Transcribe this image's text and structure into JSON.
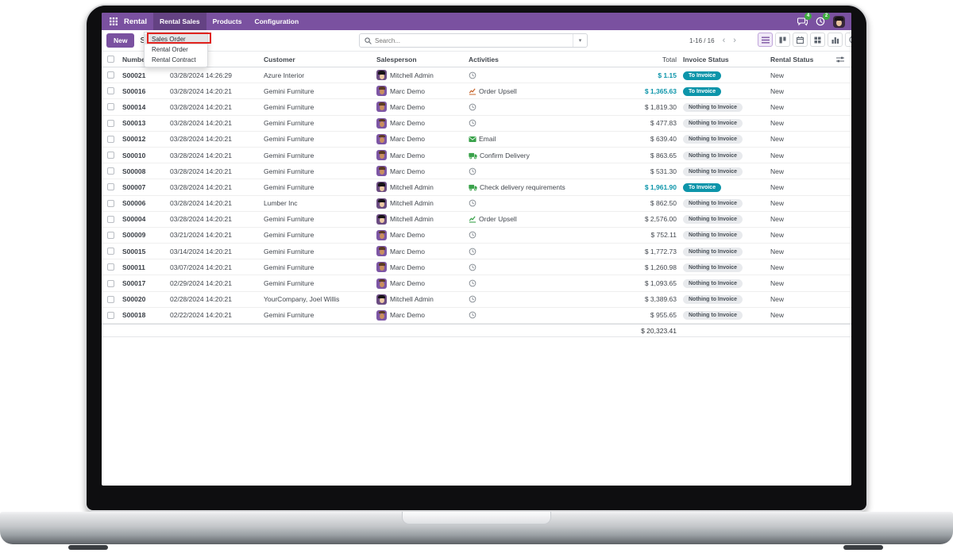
{
  "navbar": {
    "app_name": "Rental",
    "menus": [
      "Rental Sales",
      "Products",
      "Configuration"
    ],
    "active_menu": "Rental Sales",
    "messages_badge": "4",
    "activities_badge": "2"
  },
  "control_panel": {
    "new_label": "New",
    "breadcrumb": "Sales",
    "search_placeholder": "Search...",
    "pager_text": "1-16 / 16",
    "views": [
      "list",
      "kanban",
      "calendar",
      "pivot",
      "graph",
      "activity"
    ],
    "active_view": "list"
  },
  "dropdown_menu": {
    "items": [
      "Sales Order",
      "Rental Order",
      "Rental Contract"
    ],
    "highlighted_item": "Sales Order",
    "annotation_color": "#e0231e"
  },
  "colors": {
    "brand_purple": "#7a51a0",
    "info_teal": "#0d95aa",
    "muted_badge": "#e8eaed",
    "activity_green": "#39a24a",
    "activity_orange": "#c7642a",
    "badge_green": "#3fae41"
  },
  "table": {
    "headers": [
      "Number",
      "Customer",
      "Salesperson",
      "Activities",
      "Total",
      "Invoice Status",
      "Rental Status"
    ],
    "footer_total": "$ 20,323.41",
    "rows": [
      {
        "number": "S00021",
        "date": "03/28/2024 14:26:29",
        "customer": "Azure Interior",
        "salesperson": "Mitchell Admin",
        "avatar": "admin",
        "activity": {
          "icon": "clock",
          "label": "",
          "color": "#8a9097"
        },
        "total": "$ 1.15",
        "total_teal": true,
        "invoice_status": "To Invoice",
        "invoice_badge": "info",
        "rental_status": "New"
      },
      {
        "number": "S00016",
        "date": "03/28/2024 14:20:21",
        "customer": "Gemini Furniture",
        "salesperson": "Marc Demo",
        "avatar": "demo",
        "activity": {
          "icon": "chart",
          "label": "Order Upsell",
          "color": "#c7642a"
        },
        "total": "$ 1,365.63",
        "total_teal": true,
        "invoice_status": "To Invoice",
        "invoice_badge": "info",
        "rental_status": "New"
      },
      {
        "number": "S00014",
        "date": "03/28/2024 14:20:21",
        "customer": "Gemini Furniture",
        "salesperson": "Marc Demo",
        "avatar": "demo",
        "activity": {
          "icon": "clock",
          "label": "",
          "color": "#8a9097"
        },
        "total": "$ 1,819.30",
        "total_teal": false,
        "invoice_status": "Nothing to Invoice",
        "invoice_badge": "muted",
        "rental_status": "New"
      },
      {
        "number": "S00013",
        "date": "03/28/2024 14:20:21",
        "customer": "Gemini Furniture",
        "salesperson": "Marc Demo",
        "avatar": "demo",
        "activity": {
          "icon": "clock",
          "label": "",
          "color": "#8a9097"
        },
        "total": "$ 477.83",
        "total_teal": false,
        "invoice_status": "Nothing to Invoice",
        "invoice_badge": "muted",
        "rental_status": "New"
      },
      {
        "number": "S00012",
        "date": "03/28/2024 14:20:21",
        "customer": "Gemini Furniture",
        "salesperson": "Marc Demo",
        "avatar": "demo",
        "activity": {
          "icon": "email",
          "label": "Email",
          "color": "#39a24a"
        },
        "total": "$ 639.40",
        "total_teal": false,
        "invoice_status": "Nothing to Invoice",
        "invoice_badge": "muted",
        "rental_status": "New"
      },
      {
        "number": "S00010",
        "date": "03/28/2024 14:20:21",
        "customer": "Gemini Furniture",
        "salesperson": "Marc Demo",
        "avatar": "demo",
        "activity": {
          "icon": "delivery",
          "label": "Confirm Delivery",
          "color": "#39a24a"
        },
        "total": "$ 863.65",
        "total_teal": false,
        "invoice_status": "Nothing to Invoice",
        "invoice_badge": "muted",
        "rental_status": "New"
      },
      {
        "number": "S00008",
        "date": "03/28/2024 14:20:21",
        "customer": "Gemini Furniture",
        "salesperson": "Marc Demo",
        "avatar": "demo",
        "activity": {
          "icon": "clock",
          "label": "",
          "color": "#8a9097"
        },
        "total": "$ 531.30",
        "total_teal": false,
        "invoice_status": "Nothing to Invoice",
        "invoice_badge": "muted",
        "rental_status": "New"
      },
      {
        "number": "S00007",
        "date": "03/28/2024 14:20:21",
        "customer": "Gemini Furniture",
        "salesperson": "Mitchell Admin",
        "avatar": "admin",
        "activity": {
          "icon": "delivery",
          "label": "Check delivery requirements",
          "color": "#39a24a"
        },
        "total": "$ 1,961.90",
        "total_teal": true,
        "invoice_status": "To Invoice",
        "invoice_badge": "info",
        "rental_status": "New"
      },
      {
        "number": "S00006",
        "date": "03/28/2024 14:20:21",
        "customer": "Lumber Inc",
        "salesperson": "Mitchell Admin",
        "avatar": "admin",
        "activity": {
          "icon": "clock",
          "label": "",
          "color": "#8a9097"
        },
        "total": "$ 862.50",
        "total_teal": false,
        "invoice_status": "Nothing to Invoice",
        "invoice_badge": "muted",
        "rental_status": "New"
      },
      {
        "number": "S00004",
        "date": "03/28/2024 14:20:21",
        "customer": "Gemini Furniture",
        "salesperson": "Mitchell Admin",
        "avatar": "admin",
        "activity": {
          "icon": "chart",
          "label": "Order Upsell",
          "color": "#39a24a"
        },
        "total": "$ 2,576.00",
        "total_teal": false,
        "invoice_status": "Nothing to Invoice",
        "invoice_badge": "muted",
        "rental_status": "New"
      },
      {
        "number": "S00009",
        "date": "03/21/2024 14:20:21",
        "customer": "Gemini Furniture",
        "salesperson": "Marc Demo",
        "avatar": "demo",
        "activity": {
          "icon": "clock",
          "label": "",
          "color": "#8a9097"
        },
        "total": "$ 752.11",
        "total_teal": false,
        "invoice_status": "Nothing to Invoice",
        "invoice_badge": "muted",
        "rental_status": "New"
      },
      {
        "number": "S00015",
        "date": "03/14/2024 14:20:21",
        "customer": "Gemini Furniture",
        "salesperson": "Marc Demo",
        "avatar": "demo",
        "activity": {
          "icon": "clock",
          "label": "",
          "color": "#8a9097"
        },
        "total": "$ 1,772.73",
        "total_teal": false,
        "invoice_status": "Nothing to Invoice",
        "invoice_badge": "muted",
        "rental_status": "New"
      },
      {
        "number": "S00011",
        "date": "03/07/2024 14:20:21",
        "customer": "Gemini Furniture",
        "salesperson": "Marc Demo",
        "avatar": "demo",
        "activity": {
          "icon": "clock",
          "label": "",
          "color": "#8a9097"
        },
        "total": "$ 1,260.98",
        "total_teal": false,
        "invoice_status": "Nothing to Invoice",
        "invoice_badge": "muted",
        "rental_status": "New"
      },
      {
        "number": "S00017",
        "date": "02/29/2024 14:20:21",
        "customer": "Gemini Furniture",
        "salesperson": "Marc Demo",
        "avatar": "demo",
        "activity": {
          "icon": "clock",
          "label": "",
          "color": "#8a9097"
        },
        "total": "$ 1,093.65",
        "total_teal": false,
        "invoice_status": "Nothing to Invoice",
        "invoice_badge": "muted",
        "rental_status": "New"
      },
      {
        "number": "S00020",
        "date": "02/28/2024 14:20:21",
        "customer": "YourCompany, Joel Willis",
        "salesperson": "Mitchell Admin",
        "avatar": "admin",
        "activity": {
          "icon": "clock",
          "label": "",
          "color": "#8a9097"
        },
        "total": "$ 3,389.63",
        "total_teal": false,
        "invoice_status": "Nothing to Invoice",
        "invoice_badge": "muted",
        "rental_status": "New"
      },
      {
        "number": "S00018",
        "date": "02/22/2024 14:20:21",
        "customer": "Gemini Furniture",
        "salesperson": "Marc Demo",
        "avatar": "demo",
        "activity": {
          "icon": "clock",
          "label": "",
          "color": "#8a9097"
        },
        "total": "$ 955.65",
        "total_teal": false,
        "invoice_status": "Nothing to Invoice",
        "invoice_badge": "muted",
        "rental_status": "New"
      }
    ]
  }
}
